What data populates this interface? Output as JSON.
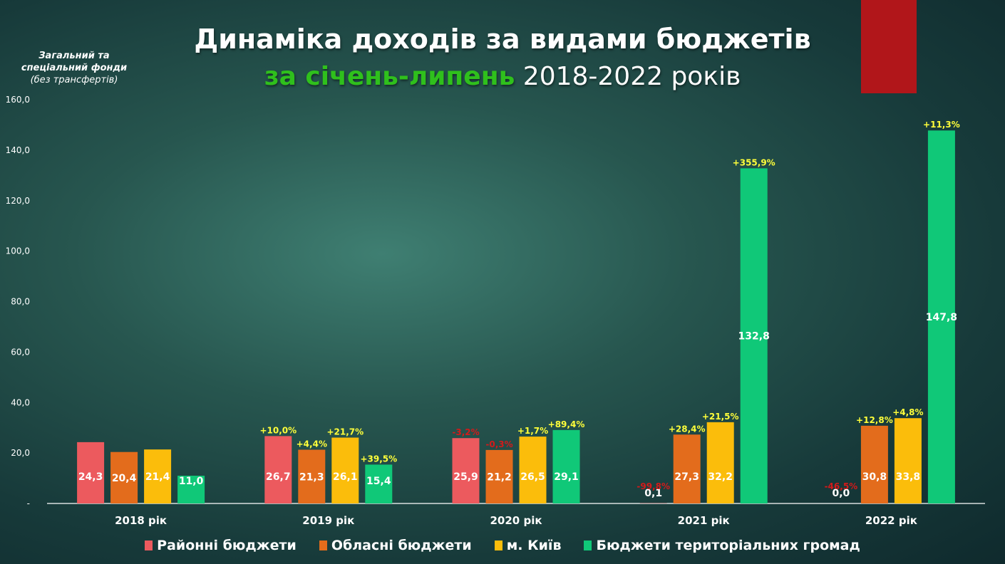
{
  "title": "Динаміка доходів за видами бюджетів",
  "subtitle_highlight": "за січень-липень",
  "subtitle_rest": " 2018-2022 років",
  "ylabel_line1": "Загальний та",
  "ylabel_line2": "спеціальний фонди",
  "ylabel_line3": "(без трансфертів)",
  "chart_data": {
    "type": "bar",
    "categories": [
      "2018 рік",
      "2019 рік",
      "2020 рік",
      "2021 рік",
      "2022 рік"
    ],
    "ylim": [
      0,
      160
    ],
    "yticks": [
      "-",
      "20,0",
      "40,0",
      "60,0",
      "80,0",
      "100,0",
      "120,0",
      "140,0",
      "160,0"
    ],
    "grid": false,
    "legend_position": "bottom",
    "series": [
      {
        "name": "Районні бюджети",
        "color": "#ec5a5e",
        "values": [
          24.3,
          26.7,
          25.9,
          0.1,
          0.0
        ],
        "labels": [
          "24,3",
          "26,7",
          "25,9",
          "0,1",
          "0,0"
        ],
        "changes": [
          "",
          "+10,0%",
          "-3,2%",
          "-99,8%",
          "-46,5%"
        ]
      },
      {
        "name": "Обласні бюджети",
        "color": "#e36c1c",
        "values": [
          20.4,
          21.3,
          21.2,
          27.3,
          30.8
        ],
        "labels": [
          "20,4",
          "21,3",
          "21,2",
          "27,3",
          "30,8"
        ],
        "changes": [
          "",
          "+4,4%",
          "-0,3%",
          "+28,4%",
          "+12,8%"
        ]
      },
      {
        "name": "м. Київ",
        "color": "#fbbd0b",
        "values": [
          21.4,
          26.1,
          26.5,
          32.2,
          33.8
        ],
        "labels": [
          "21,4",
          "26,1",
          "26,5",
          "32,2",
          "33,8"
        ],
        "changes": [
          "",
          "+21,7%",
          "+1,7%",
          "+21,5%",
          "+4,8%"
        ]
      },
      {
        "name": "Бюджети територіальних громад",
        "color": "#10c878",
        "values": [
          11.0,
          15.4,
          29.1,
          132.8,
          147.8
        ],
        "labels": [
          "11,0",
          "15,4",
          "29,1",
          "132,8",
          "147,8"
        ],
        "changes": [
          "",
          "+39,5%",
          "+89,4%",
          "+355,9%",
          "+11,3%"
        ]
      }
    ]
  }
}
